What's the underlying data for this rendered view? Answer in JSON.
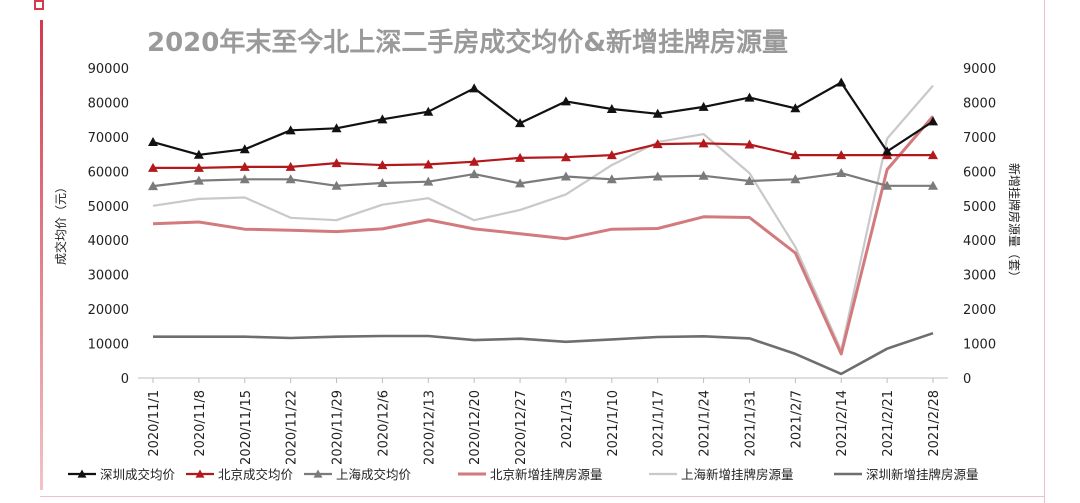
{
  "chart_data": {
    "type": "line",
    "title": "2020年末至今北上深二手房成交均价&新增挂牌房源量",
    "ylabel_left": "成交均价（元）",
    "ylabel_right": "新增挂牌房源量（套）",
    "ylim_left": [
      0,
      90000
    ],
    "ylim_right": [
      0,
      9000
    ],
    "yticks_left": [
      "0",
      "10000",
      "20000",
      "30000",
      "40000",
      "50000",
      "60000",
      "70000",
      "80000",
      "90000"
    ],
    "yticks_right": [
      "0",
      "1000",
      "2000",
      "3000",
      "4000",
      "5000",
      "6000",
      "7000",
      "8000",
      "9000"
    ],
    "x": [
      "2020/11/1",
      "2020/11/8",
      "2020/11/15",
      "2020/11/22",
      "2020/11/29",
      "2020/12/6",
      "2020/12/13",
      "2020/12/20",
      "2020/12/27",
      "2021/1/3",
      "2021/1/10",
      "2021/1/17",
      "2021/1/24",
      "2021/1/31",
      "2021/2/7",
      "2021/2/14",
      "2021/2/21",
      "2021/2/28"
    ],
    "grid": false,
    "legend_position": "bottom",
    "series": [
      {
        "name": "深圳成交均价",
        "axis": "left",
        "color": "#111111",
        "width": 2.2,
        "marker": "triangle",
        "values": [
          68500,
          64800,
          66400,
          71900,
          72500,
          75100,
          77300,
          84100,
          74000,
          80300,
          78100,
          76700,
          78700,
          81400,
          78300,
          85800,
          65800,
          74500
        ]
      },
      {
        "name": "北京成交均价",
        "axis": "left",
        "color": "#b3191c",
        "width": 2.2,
        "marker": "triangle",
        "values": [
          61000,
          61000,
          61300,
          61300,
          62400,
          61800,
          62000,
          62800,
          63900,
          64100,
          64700,
          67900,
          68100,
          67800,
          64700,
          64700,
          64700,
          64700
        ]
      },
      {
        "name": "上海成交均价",
        "axis": "left",
        "color": "#7b7b7b",
        "width": 2.2,
        "marker": "triangle",
        "values": [
          55700,
          57300,
          57700,
          57700,
          55800,
          56600,
          57000,
          59200,
          56500,
          58500,
          57700,
          58500,
          58700,
          57200,
          57700,
          59500,
          55800,
          55800
        ]
      },
      {
        "name": "北京新增挂牌房源量",
        "axis": "right",
        "color": "#d27a7d",
        "width": 3,
        "marker": "none",
        "values": [
          4480,
          4530,
          4320,
          4290,
          4250,
          4330,
          4590,
          4330,
          4190,
          4040,
          4320,
          4340,
          4680,
          4660,
          3630,
          700,
          6050,
          7600
        ]
      },
      {
        "name": "上海新增挂牌房源量",
        "axis": "right",
        "color": "#c9c9c9",
        "width": 2.2,
        "marker": "none",
        "values": [
          5000,
          5200,
          5240,
          4650,
          4580,
          5030,
          5220,
          4580,
          4880,
          5330,
          6180,
          6850,
          7080,
          5950,
          3800,
          800,
          6950,
          8490
        ]
      },
      {
        "name": "深圳新增挂牌房源量",
        "axis": "right",
        "color": "#6e6e6e",
        "width": 2.6,
        "marker": "none",
        "values": [
          1200,
          1200,
          1200,
          1160,
          1200,
          1220,
          1220,
          1100,
          1140,
          1050,
          1120,
          1190,
          1210,
          1150,
          700,
          120,
          850,
          1300
        ]
      }
    ]
  }
}
